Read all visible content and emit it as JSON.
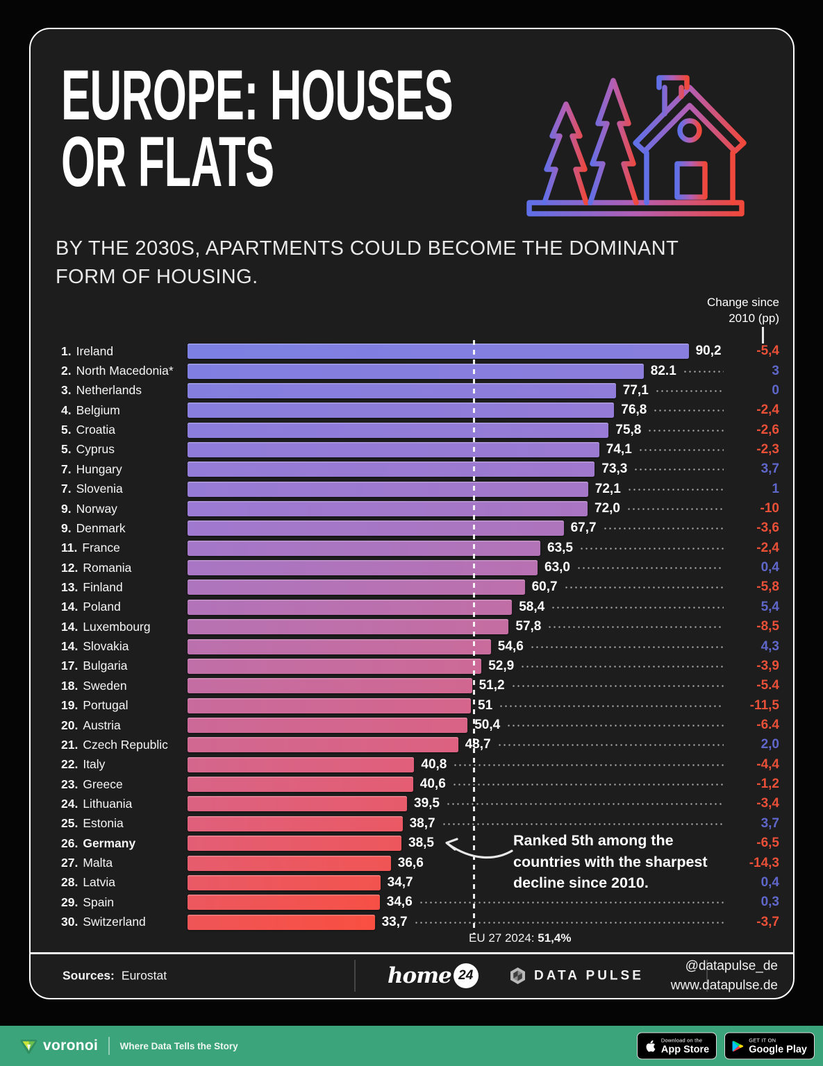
{
  "header": {
    "title_line1": "EUROPE: HOUSES",
    "title_line2": "OR FLATS",
    "subtitle": "BY THE 2030S, APARTMENTS COULD BECOME THE DOMINANT FORM OF HOUSING."
  },
  "chart_data": {
    "type": "bar",
    "orientation": "horizontal",
    "title": "EUROPE: HOUSES OR FLATS",
    "xlim": [
      0,
      92
    ],
    "change_header_line1": "Change since",
    "change_header_line2": "2010 (pp)",
    "reference_line": {
      "label": "EU 27 2024:",
      "value_label": "51,4%",
      "value": 51.4
    },
    "annotation": "Ranked 5th among the countries with the sharpest decline since 2010.",
    "rows": [
      {
        "rank": "1.",
        "country": "Ireland",
        "value": 90.2,
        "value_label": "90,2",
        "change_label": "-5,4"
      },
      {
        "rank": "2.",
        "country": "North Macedonia*",
        "value": 82.1,
        "value_label": "82.1",
        "change_label": "3"
      },
      {
        "rank": "3.",
        "country": "Netherlands",
        "value": 77.1,
        "value_label": "77,1",
        "change_label": "0"
      },
      {
        "rank": "4.",
        "country": "Belgium",
        "value": 76.8,
        "value_label": "76,8",
        "change_label": "-2,4"
      },
      {
        "rank": "5.",
        "country": "Croatia",
        "value": 75.8,
        "value_label": "75,8",
        "change_label": "-2,6"
      },
      {
        "rank": "5.",
        "country": "Cyprus",
        "value": 74.1,
        "value_label": "74,1",
        "change_label": "-2,3"
      },
      {
        "rank": "7.",
        "country": "Hungary",
        "value": 73.3,
        "value_label": "73,3",
        "change_label": "3,7"
      },
      {
        "rank": "7.",
        "country": "Slovenia",
        "value": 72.1,
        "value_label": "72,1",
        "change_label": "1"
      },
      {
        "rank": "9.",
        "country": "Norway",
        "value": 72.0,
        "value_label": "72,0",
        "change_label": "-10"
      },
      {
        "rank": "9.",
        "country": "Denmark",
        "value": 67.7,
        "value_label": "67,7",
        "change_label": "-3,6"
      },
      {
        "rank": "11.",
        "country": "France",
        "value": 63.5,
        "value_label": "63,5",
        "change_label": "-2,4"
      },
      {
        "rank": "12.",
        "country": "Romania",
        "value": 63.0,
        "value_label": "63,0",
        "change_label": "0,4"
      },
      {
        "rank": "13.",
        "country": "Finland",
        "value": 60.7,
        "value_label": "60,7",
        "change_label": "-5,8"
      },
      {
        "rank": "14.",
        "country": "Poland",
        "value": 58.4,
        "value_label": "58,4",
        "change_label": "5,4"
      },
      {
        "rank": "14.",
        "country": "Luxembourg",
        "value": 57.8,
        "value_label": "57,8",
        "change_label": "-8,5"
      },
      {
        "rank": "14.",
        "country": "Slovakia",
        "value": 54.6,
        "value_label": "54,6",
        "change_label": "4,3"
      },
      {
        "rank": "17.",
        "country": "Bulgaria",
        "value": 52.9,
        "value_label": "52,9",
        "change_label": "-3,9"
      },
      {
        "rank": "18.",
        "country": "Sweden",
        "value": 51.2,
        "value_label": "51,2",
        "change_label": "-5.4"
      },
      {
        "rank": "19.",
        "country": "Portugal",
        "value": 51,
        "value_label": "51",
        "change_label": "-11,5"
      },
      {
        "rank": "20.",
        "country": "Austria",
        "value": 50.4,
        "value_label": "50,4",
        "change_label": "-6.4"
      },
      {
        "rank": "21.",
        "country": "Czech Republic",
        "value": 48.7,
        "value_label": "48,7",
        "change_label": "2,0"
      },
      {
        "rank": "22.",
        "country": "Italy",
        "value": 40.8,
        "value_label": "40,8",
        "change_label": "-4,4"
      },
      {
        "rank": "23.",
        "country": "Greece",
        "value": 40.6,
        "value_label": "40,6",
        "change_label": "-1,2"
      },
      {
        "rank": "24.",
        "country": "Lithuania",
        "value": 39.5,
        "value_label": "39,5",
        "change_label": "-3,4"
      },
      {
        "rank": "25.",
        "country": "Estonia",
        "value": 38.7,
        "value_label": "38,7",
        "change_label": "3,7"
      },
      {
        "rank": "26.",
        "country": "Germany",
        "value": 38.5,
        "value_label": "38,5",
        "change_label": "-6,5",
        "bold": true,
        "leader": false
      },
      {
        "rank": "27.",
        "country": "Malta",
        "value": 36.6,
        "value_label": "36,6",
        "change_label": "-14,3",
        "leader": false
      },
      {
        "rank": "28.",
        "country": "Latvia",
        "value": 34.7,
        "value_label": "34,7",
        "change_label": "0,4",
        "leader": false
      },
      {
        "rank": "29.",
        "country": "Spain",
        "value": 34.6,
        "value_label": "34,6",
        "change_label": "0,3"
      },
      {
        "rank": "30.",
        "country": "Switzerland",
        "value": 33.7,
        "value_label": "33,7",
        "change_label": "-3,7"
      }
    ]
  },
  "colors": {
    "page_bg": "#050505",
    "card_bg": "#1d1d1d",
    "negative_change": "#ea5038",
    "positive_change": "#6067cb",
    "bar_gradient_stops": [
      "#7c80e3",
      "#9a7ad4",
      "#c06fa8",
      "#e0607c",
      "#f84f41"
    ],
    "icon_gradient_start": "#6070e8",
    "icon_gradient_end": "#f0483a",
    "footer_bar_bg": "#3ca47b"
  },
  "footer": {
    "sources_label": "Sources:",
    "sources_value": "Eurostat",
    "home24_script": "home",
    "home24_badge": "24",
    "datapulse_name": "DATA PULSE",
    "handle": "@datapulse_de",
    "website": "www.datapulse.de"
  },
  "bottom_bar": {
    "brand": "voronoi",
    "tagline": "Where Data Tells the Story",
    "appstore_small": "Download on the",
    "appstore_big": "App Store",
    "gplay_small": "GET IT ON",
    "gplay_big": "Google Play"
  }
}
